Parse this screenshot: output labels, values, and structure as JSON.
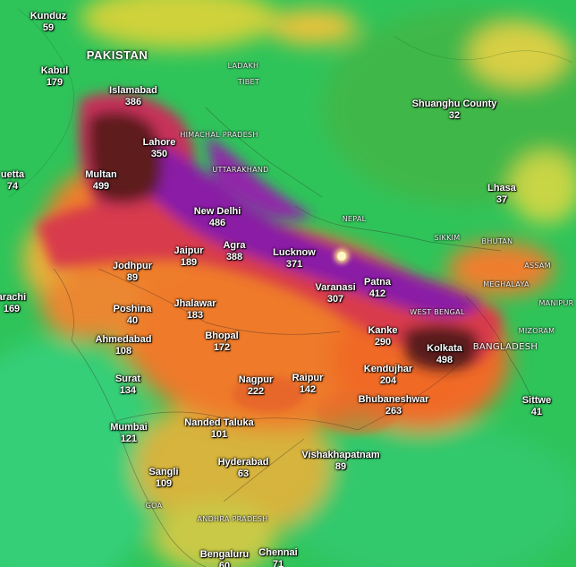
{
  "map": {
    "country_labels": [
      {
        "id": "pakistan",
        "text": "PAKISTAN"
      }
    ],
    "region_labels": [
      {
        "id": "ladakh",
        "text": "LADAKH"
      },
      {
        "id": "tibet",
        "text": "TIBET"
      },
      {
        "id": "himachal",
        "text": "HIMACHAL PRADESH"
      },
      {
        "id": "uttarakhand",
        "text": "UTTARAKHAND"
      },
      {
        "id": "nepal",
        "text": "NEPAL"
      },
      {
        "id": "sikkim",
        "text": "SIKKIM"
      },
      {
        "id": "bhutan",
        "text": "BHUTAN"
      },
      {
        "id": "assam",
        "text": "ASSAM"
      },
      {
        "id": "meghalaya",
        "text": "MEGHALAYA"
      },
      {
        "id": "manipur",
        "text": "MANIPUR"
      },
      {
        "id": "westbengal",
        "text": "WEST BENGAL"
      },
      {
        "id": "mizoram",
        "text": "MIZORAM"
      },
      {
        "id": "bangladesh",
        "text": "BANGLADESH"
      },
      {
        "id": "goa",
        "text": "GOA"
      },
      {
        "id": "andhra",
        "text": "ANDHRA PRADESH"
      }
    ],
    "cities": [
      {
        "id": "kunduz",
        "name": "Kunduz",
        "value": "59"
      },
      {
        "id": "kabul",
        "name": "Kabul",
        "value": "179"
      },
      {
        "id": "islamabad",
        "name": "Islamabad",
        "value": "386"
      },
      {
        "id": "lahore",
        "name": "Lahore",
        "value": "350"
      },
      {
        "id": "quetta",
        "name": "uetta",
        "value": "74"
      },
      {
        "id": "multan",
        "name": "Multan",
        "value": "499"
      },
      {
        "id": "newdelhi",
        "name": "New Delhi",
        "value": "486"
      },
      {
        "id": "jaipur",
        "name": "Jaipur",
        "value": "189"
      },
      {
        "id": "agra",
        "name": "Agra",
        "value": "388"
      },
      {
        "id": "lucknow",
        "name": "Lucknow",
        "value": "371"
      },
      {
        "id": "jodhpur",
        "name": "Jodhpur",
        "value": "89"
      },
      {
        "id": "karachi",
        "name": "arachi",
        "value": "169"
      },
      {
        "id": "poshina",
        "name": "Poshina",
        "value": "40"
      },
      {
        "id": "jhalawar",
        "name": "Jhalawar",
        "value": "183"
      },
      {
        "id": "varanasi",
        "name": "Varanasi",
        "value": "307"
      },
      {
        "id": "patna",
        "name": "Patna",
        "value": "412"
      },
      {
        "id": "ahmedabad",
        "name": "Ahmedabad",
        "value": "108"
      },
      {
        "id": "bhopal",
        "name": "Bhopal",
        "value": "172"
      },
      {
        "id": "kanke",
        "name": "Kanke",
        "value": "290"
      },
      {
        "id": "kolkata",
        "name": "Kolkata",
        "value": "498"
      },
      {
        "id": "surat",
        "name": "Surat",
        "value": "134"
      },
      {
        "id": "nagpur",
        "name": "Nagpur",
        "value": "222"
      },
      {
        "id": "raipur",
        "name": "Raipur",
        "value": "142"
      },
      {
        "id": "kendujhar",
        "name": "Kendujhar",
        "value": "204"
      },
      {
        "id": "bhubaneshwar",
        "name": "Bhubaneshwar",
        "value": "263"
      },
      {
        "id": "mumbai",
        "name": "Mumbai",
        "value": "121"
      },
      {
        "id": "nanded",
        "name": "Nanded Taluka",
        "value": "101"
      },
      {
        "id": "vishakhapatnam",
        "name": "Vishakhapatnam",
        "value": "89"
      },
      {
        "id": "hyderabad",
        "name": "Hyderabad",
        "value": "63"
      },
      {
        "id": "sangli",
        "name": "Sangli",
        "value": "109"
      },
      {
        "id": "bengaluru",
        "name": "Bengaluru",
        "value": "60"
      },
      {
        "id": "chennai",
        "name": "Chennai",
        "value": "71"
      },
      {
        "id": "shuanghu",
        "name": "Shuanghu County",
        "value": "32"
      },
      {
        "id": "lhasa",
        "name": "Lhasa",
        "value": "37"
      },
      {
        "id": "sittwe",
        "name": "Sittwe",
        "value": "41"
      }
    ]
  }
}
